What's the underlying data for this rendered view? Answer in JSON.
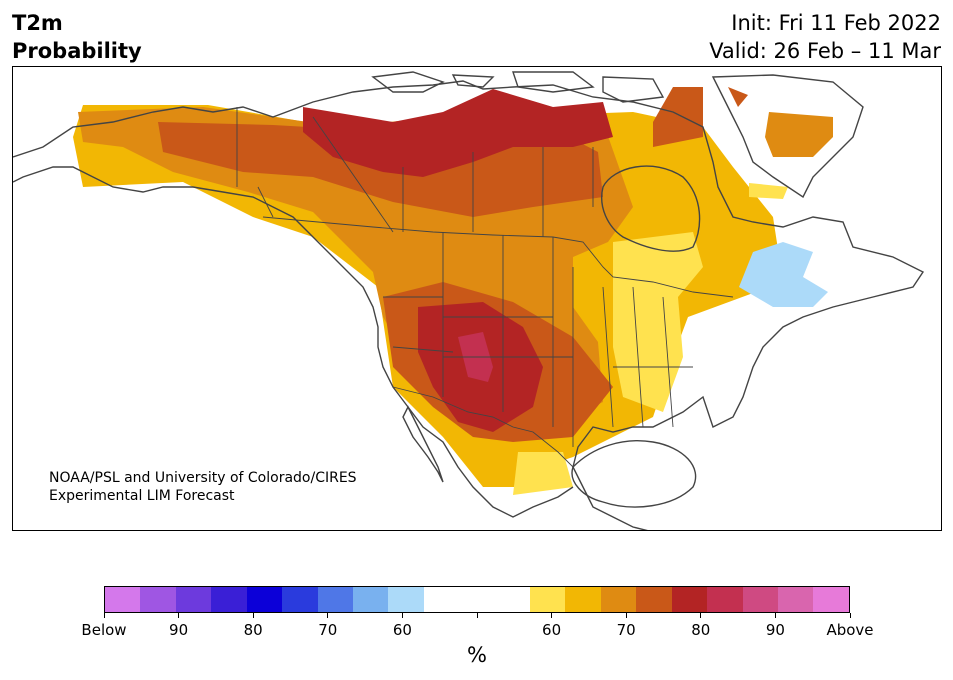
{
  "title": {
    "left_line1": "T2m",
    "left_line2": "Probability",
    "init": "Init: Fri 11 Feb 2022",
    "valid": "Valid: 26 Feb – 11 Mar"
  },
  "credit": {
    "line1": "NOAA/PSL and University of Colorado/CIRES",
    "line2": "Experimental LIM Forecast"
  },
  "colorbar": {
    "colors": [
      "#d478eb",
      "#9f56e3",
      "#6d3add",
      "#3a1fd6",
      "#0c00d8",
      "#2a3bdd",
      "#4f77e7",
      "#79b1ef",
      "#acdaf9",
      "#ffffff",
      "#ffffff",
      "#ffffff",
      "#ffe24f",
      "#f2b704",
      "#df8b12",
      "#c95818",
      "#b32424",
      "#c33050",
      "#cf4a82",
      "#d965ae",
      "#e77ad9"
    ],
    "labels": [
      "Below",
      "90",
      "80",
      "70",
      "60",
      "",
      "60",
      "70",
      "80",
      "90",
      "Above"
    ],
    "unit": "%"
  },
  "map": {
    "land_color": "#ffffff",
    "coast_color": "#444444",
    "warm_colors": {
      "p55": "#ffe24f",
      "p60": "#f2b704",
      "p65": "#df8b12",
      "p70": "#c95818",
      "p80": "#b32424",
      "p85": "#c33050"
    },
    "cool_colors": {
      "p55": "#acdaf9"
    }
  }
}
